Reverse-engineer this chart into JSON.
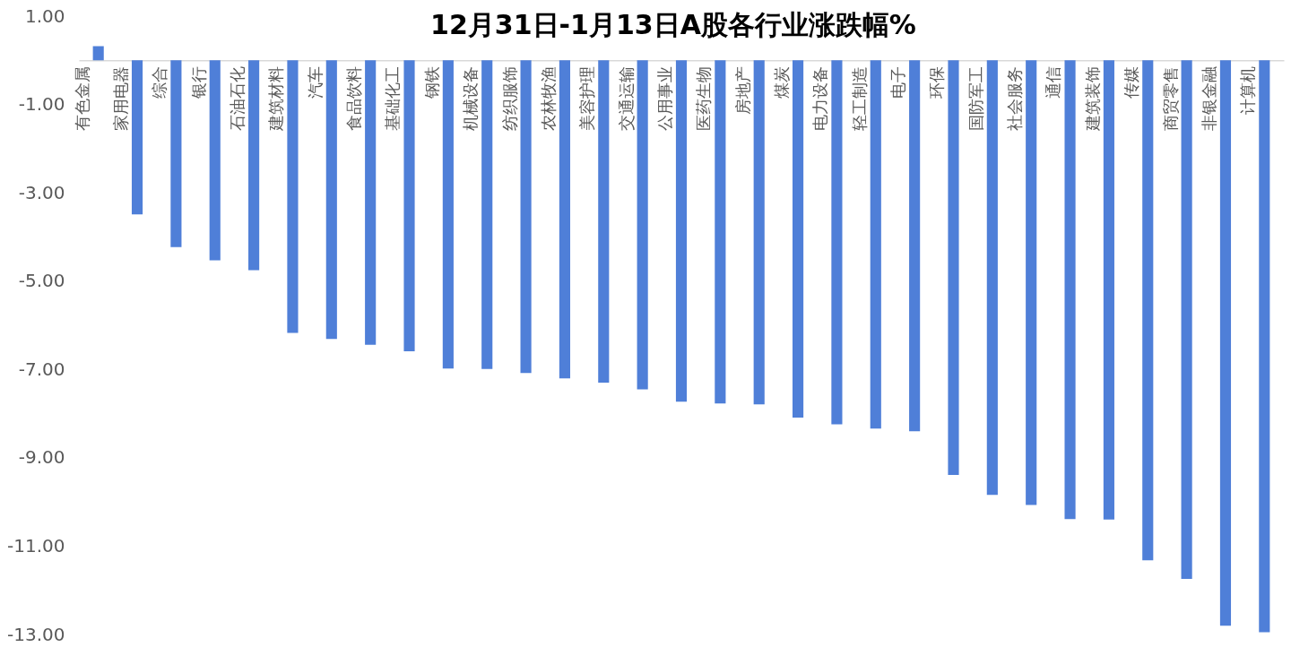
{
  "chart_data": {
    "type": "bar",
    "title": "12月31日-1月13日A股各行业涨跌幅%",
    "categories": [
      "有色金属",
      "家用电器",
      "综合",
      "银行",
      "石油石化",
      "建筑材料",
      "汽车",
      "食品饮料",
      "基础化工",
      "钢铁",
      "机械设备",
      "纺织服饰",
      "农林牧渔",
      "美容护理",
      "交通运输",
      "公用事业",
      "医药生物",
      "房地产",
      "煤炭",
      "电力设备",
      "轻工制造",
      "电子",
      "环保",
      "国防军工",
      "社会服务",
      "通信",
      "建筑装饰",
      "传媒",
      "商贸零售",
      "非银金融",
      "计算机"
    ],
    "values": [
      0.32,
      -3.49,
      -4.23,
      -4.53,
      -4.75,
      -6.17,
      -6.31,
      -6.44,
      -6.59,
      -6.98,
      -6.99,
      -7.08,
      -7.2,
      -7.3,
      -7.45,
      -7.73,
      -7.77,
      -7.79,
      -8.09,
      -8.24,
      -8.34,
      -8.4,
      -9.39,
      -9.84,
      -10.07,
      -10.39,
      -10.4,
      -11.32,
      -11.74,
      -12.8,
      -12.95
    ],
    "color": "#4f7fd8",
    "ylim": [
      -13,
      1
    ],
    "yticks": [
      {
        "value": 1,
        "label": "1.00"
      },
      {
        "value": -1,
        "label": "-1.00"
      },
      {
        "value": -3,
        "label": "-3.00"
      },
      {
        "value": -5,
        "label": "-5.00"
      },
      {
        "value": -7,
        "label": "-7.00"
      },
      {
        "value": -9,
        "label": "-9.00"
      },
      {
        "value": -11,
        "label": "-11.00"
      },
      {
        "value": -13,
        "label": "-13.00"
      }
    ]
  }
}
